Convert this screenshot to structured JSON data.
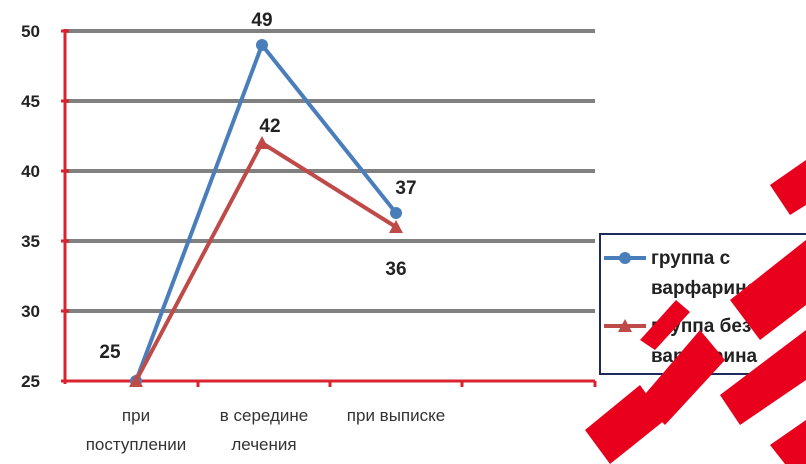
{
  "chart_data": {
    "type": "line",
    "categories": [
      "при поступлении",
      "в середине лечения",
      "при выписке"
    ],
    "category_lines": [
      [
        "при",
        "поступлении"
      ],
      [
        "в середине",
        "лечения"
      ],
      [
        "при выписке"
      ]
    ],
    "yticks": [
      25,
      30,
      35,
      40,
      45,
      50
    ],
    "ylim": [
      25,
      50
    ],
    "grid": true,
    "legend_position": "right",
    "series": [
      {
        "name_lines": [
          "группа с",
          "варфарином"
        ],
        "values": [
          25,
          49,
          37
        ],
        "data_labels": [
          "",
          "49",
          "37"
        ],
        "color": "#4a7ebb",
        "marker": "circle"
      },
      {
        "name_lines": [
          "группа без",
          "варфарина"
        ],
        "values": [
          25,
          42,
          36
        ],
        "data_labels": [
          "25",
          "42",
          "36"
        ],
        "color": "#be4b48",
        "marker": "triangle"
      }
    ]
  },
  "colors": {
    "axis": "#d9232e",
    "grid": "#808080",
    "stamp": "#e8001c"
  }
}
